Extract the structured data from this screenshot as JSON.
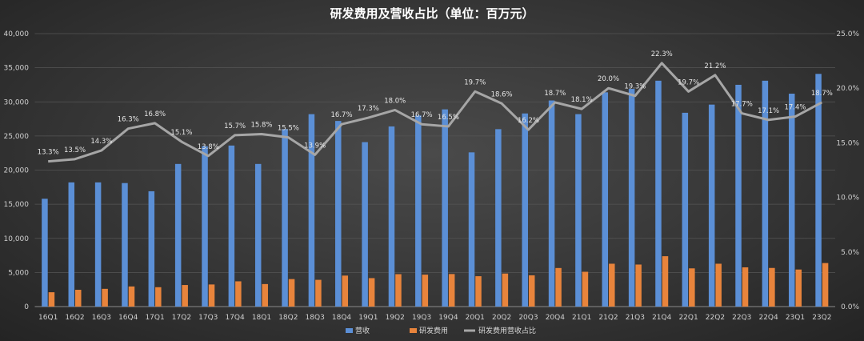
{
  "chart_data": {
    "type": "bar+line",
    "title": "研发费用及营收占比（单位：百万元）",
    "categories": [
      "16Q1",
      "16Q2",
      "16Q3",
      "16Q4",
      "17Q1",
      "17Q2",
      "17Q3",
      "17Q4",
      "18Q1",
      "18Q2",
      "18Q3",
      "18Q4",
      "19Q1",
      "19Q2",
      "19Q3",
      "19Q4",
      "20Q1",
      "20Q2",
      "20Q3",
      "20Q4",
      "21Q1",
      "21Q2",
      "21Q3",
      "21Q4",
      "22Q1",
      "22Q2",
      "22Q3",
      "22Q4",
      "23Q1",
      "23Q2"
    ],
    "series": [
      {
        "name": "营收",
        "type": "bar",
        "axis": "left",
        "color": "#5b8fd6",
        "values": [
          15800,
          18200,
          18200,
          18100,
          16900,
          20900,
          23500,
          23600,
          20900,
          26000,
          28200,
          27200,
          24100,
          26400,
          28000,
          28900,
          22600,
          26000,
          28300,
          30200,
          28200,
          31400,
          31900,
          33100,
          28400,
          29600,
          32500,
          33100,
          31200,
          34100
        ]
      },
      {
        "name": "研发费用",
        "type": "bar",
        "axis": "left",
        "color": "#e8843c",
        "values": [
          2100,
          2460,
          2600,
          2950,
          2840,
          3160,
          3240,
          3700,
          3300,
          4030,
          3920,
          4540,
          4170,
          4750,
          4680,
          4770,
          4450,
          4840,
          4580,
          5650,
          5100,
          6280,
          6160,
          7380,
          5600,
          6280,
          5750,
          5660,
          5430,
          6380
        ]
      },
      {
        "name": "研发费用营收占比",
        "type": "line",
        "axis": "right",
        "color": "#a6a6a6",
        "values": [
          13.3,
          13.5,
          14.3,
          16.3,
          16.8,
          15.1,
          13.8,
          15.7,
          15.8,
          15.5,
          13.9,
          16.7,
          17.3,
          18.0,
          16.7,
          16.5,
          19.7,
          18.6,
          16.2,
          18.7,
          18.1,
          20.0,
          19.3,
          22.3,
          19.7,
          21.2,
          17.7,
          17.1,
          17.4,
          18.7
        ],
        "labels": [
          "13.3%",
          "13.5%",
          "14.3%",
          "16.3%",
          "16.8%",
          "15.1%",
          "13.8%",
          "15.7%",
          "15.8%",
          "15.5%",
          "13.9%",
          "16.7%",
          "17.3%",
          "18.0%",
          "16.7%",
          "16.5%",
          "19.7%",
          "18.6%",
          "16.2%",
          "18.7%",
          "18.1%",
          "20.0%",
          "19.3%",
          "22.3%",
          "19.7%",
          "21.2%",
          "17.7%",
          "17.1%",
          "17.4%",
          "18.7%"
        ]
      }
    ],
    "y_left": {
      "min": 0,
      "max": 40000,
      "ticks": [
        "0",
        "5,000",
        "10,000",
        "15,000",
        "20,000",
        "25,000",
        "30,000",
        "35,000",
        "40,000"
      ]
    },
    "y_right": {
      "min": 0,
      "max": 25,
      "ticks": [
        "0.0%",
        "5.0%",
        "10.0%",
        "15.0%",
        "20.0%",
        "25.0%"
      ]
    },
    "grid": true,
    "legend": "bottom",
    "background": "#3a3a3a"
  }
}
